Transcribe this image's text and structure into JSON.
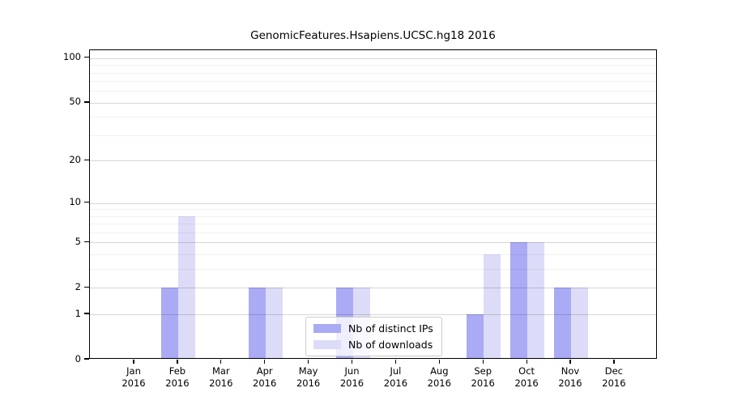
{
  "chart_data": {
    "type": "bar",
    "title": "GenomicFeatures.Hsapiens.UCSC.hg18 2016",
    "categories": [
      "Jan",
      "Feb",
      "Mar",
      "Apr",
      "May",
      "Jun",
      "Jul",
      "Aug",
      "Sep",
      "Oct",
      "Nov",
      "Dec"
    ],
    "x_sublabel": "2016",
    "series": [
      {
        "name": "Nb of distinct IPs",
        "color": "#aaaaf5",
        "values": [
          0,
          2,
          0,
          2,
          0,
          2,
          0,
          0,
          1,
          5,
          2,
          0
        ]
      },
      {
        "name": "Nb of downloads",
        "color": "#dcdcf8",
        "values": [
          0,
          8,
          0,
          2,
          0,
          2,
          0,
          0,
          4,
          5,
          2,
          0
        ]
      }
    ],
    "yscale": "log1p",
    "ylim": [
      0,
      113
    ],
    "y_major_ticks": [
      0,
      1,
      2,
      5,
      10,
      20,
      50,
      100
    ],
    "y_minor_ticks": [
      3,
      4,
      6,
      7,
      8,
      9,
      30,
      40,
      60,
      70,
      80,
      90
    ],
    "grid": true,
    "legend_position": "lower-center"
  },
  "style": {
    "bar_ips_color": "#aaaaf5",
    "bar_downloads_color": "#dcdcf8",
    "major_grid_color": "rgba(0,0,0,0.16)",
    "minor_grid_color": "rgba(0,0,0,0.055)",
    "axis_color": "#000000"
  }
}
